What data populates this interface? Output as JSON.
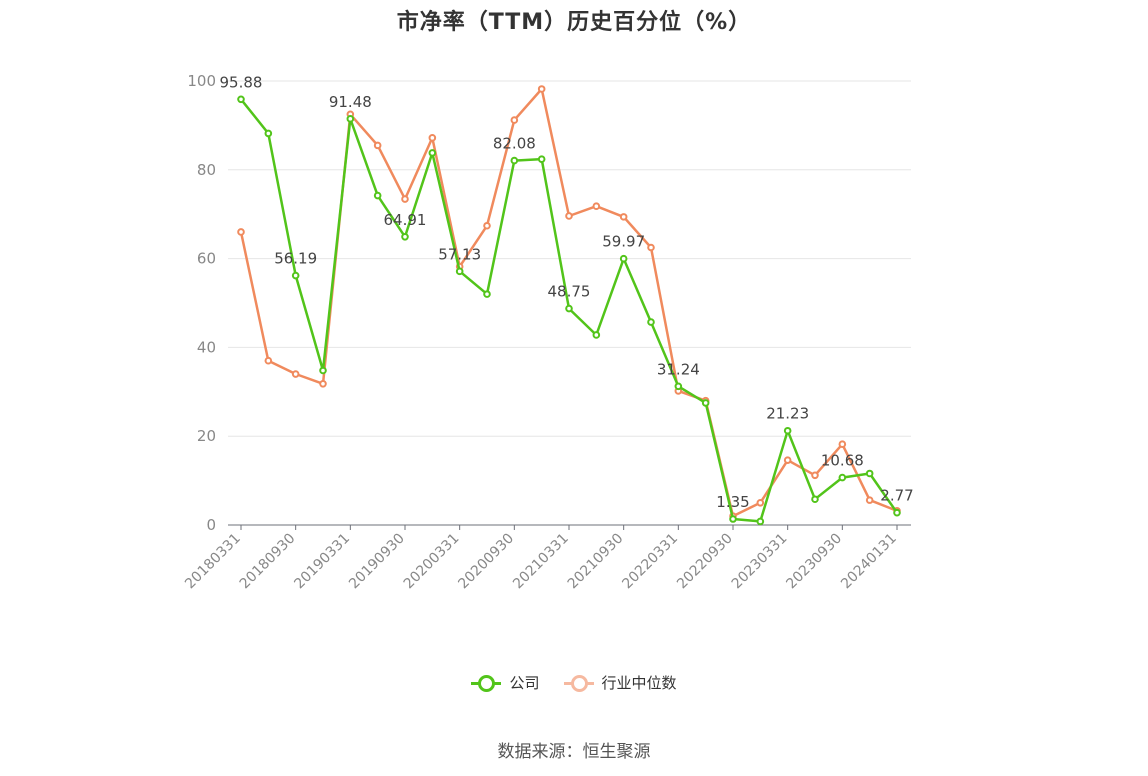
{
  "title": "市净率（TTM）历史百分位（%）",
  "source": "数据来源：恒生聚源",
  "colors": {
    "company": "#52c41a",
    "industry": "#f08a5d",
    "legend_industry": "#f6b9a0"
  },
  "chart_data": {
    "type": "line",
    "title": "市净率（TTM）历史百分位（%）",
    "xlabel": "",
    "ylabel": "",
    "ylim": [
      0,
      100
    ],
    "yticks": [
      0,
      20,
      40,
      60,
      80,
      100
    ],
    "grid": true,
    "legend_position": "bottom",
    "x": [
      "20180331",
      "20180630",
      "20180930",
      "20181231",
      "20190331",
      "20190630",
      "20190930",
      "20191231",
      "20200331",
      "20200630",
      "20200930",
      "20201231",
      "20210331",
      "20210630",
      "20210930",
      "20211231",
      "20220331",
      "20220630",
      "20220930",
      "20221231",
      "20230331",
      "20230630",
      "20230930",
      "20231231",
      "20240131"
    ],
    "xtick_labels": [
      "20180331",
      "20180930",
      "20190331",
      "20190930",
      "20200331",
      "20200930",
      "20210331",
      "20210930",
      "20220331",
      "20220930",
      "20230331",
      "20230930",
      "20240131"
    ],
    "series": [
      {
        "name": "公司",
        "values": [
          95.88,
          88.2,
          56.19,
          34.8,
          91.48,
          74.2,
          64.91,
          83.8,
          57.13,
          52.0,
          82.08,
          82.4,
          48.75,
          42.8,
          59.97,
          45.7,
          31.24,
          27.5,
          1.35,
          0.8,
          21.23,
          5.8,
          10.68,
          11.6,
          2.77
        ],
        "labels": {
          "0": "95.88",
          "2": "56.19",
          "4": "91.48",
          "6": "64.91",
          "8": "57.13",
          "10": "82.08",
          "12": "48.75",
          "14": "59.97",
          "16": "31.24",
          "18": "1.35",
          "20": "21.23",
          "22": "10.68",
          "24": "2.77"
        }
      },
      {
        "name": "行业中位数",
        "values": [
          66.0,
          37.0,
          34.0,
          31.8,
          92.5,
          85.5,
          73.4,
          87.2,
          58.2,
          67.4,
          91.2,
          98.2,
          69.6,
          71.8,
          69.4,
          62.5,
          30.2,
          28.0,
          2.0,
          5.0,
          14.6,
          11.2,
          18.2,
          5.6,
          3.2
        ]
      }
    ]
  }
}
